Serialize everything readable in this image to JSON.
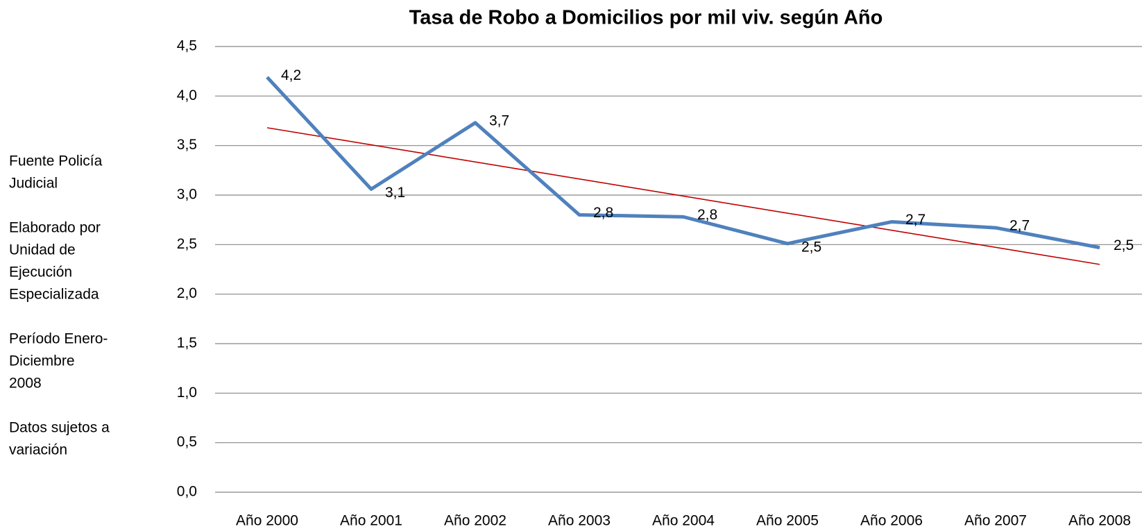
{
  "chart_data": {
    "type": "line",
    "title": "Tasa de Robo a Domicilios por mil viv. según Año",
    "categories": [
      "Año 2000",
      "Año 2001",
      "Año 2002",
      "Año 2003",
      "Año 2004",
      "Año 2005",
      "Año 2006",
      "Año 2007",
      "Año 2008"
    ],
    "series": [
      {
        "color": "#4f81bd",
        "values": [
          4.19,
          3.06,
          3.73,
          2.8,
          2.78,
          2.51,
          2.73,
          2.67,
          2.47
        ],
        "value_labels": [
          "4,2",
          "3,1",
          "3,7",
          "2,8",
          "2,8",
          "2,5",
          "2,7",
          "2,7",
          "2,5"
        ]
      }
    ],
    "trendline": {
      "color": "#c00000",
      "start": 3.68,
      "end": 2.3
    },
    "ylim": [
      0,
      4.5
    ],
    "yticks": [
      {
        "value": 0,
        "label": "0,0"
      },
      {
        "value": 0.5,
        "label": "0,5"
      },
      {
        "value": 1,
        "label": "1,0"
      },
      {
        "value": 1.5,
        "label": "1,5"
      },
      {
        "value": 2,
        "label": "2,0"
      },
      {
        "value": 2.5,
        "label": "2,5"
      },
      {
        "value": 3,
        "label": "3,0"
      },
      {
        "value": 3.5,
        "label": "3,5"
      },
      {
        "value": 4,
        "label": "4,0"
      },
      {
        "value": 4.5,
        "label": "4,5"
      }
    ],
    "grid": true,
    "notes": [
      [
        "Fuente Policía",
        "Judicial"
      ],
      [
        "Elaborado por",
        "Unidad de",
        "Ejecución",
        "Especializada"
      ],
      [
        "Período Enero-",
        "Diciembre",
        "2008"
      ],
      [
        "Datos sujetos a",
        "variación"
      ]
    ]
  }
}
